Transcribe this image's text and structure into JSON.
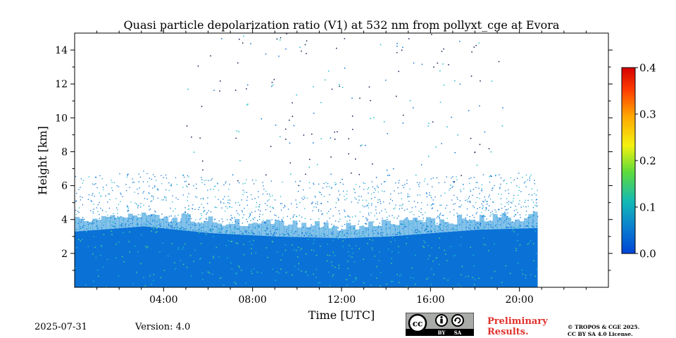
{
  "chart_data": {
    "type": "heatmap",
    "title": "Quasi particle depolarization ratio (V1) at 532 nm from pollyxt_cge at Evora",
    "xlabel": "Time [UTC]",
    "ylabel": "Height [km]",
    "x_unit": "hours UTC",
    "xlim": [
      0,
      24
    ],
    "ylim": [
      0,
      15
    ],
    "x_ticks": [
      4,
      8,
      12,
      16,
      20
    ],
    "x_tick_labels": [
      "04:00",
      "08:00",
      "12:00",
      "16:00",
      "20:00"
    ],
    "y_ticks": [
      2,
      4,
      6,
      8,
      10,
      12,
      14
    ],
    "y_tick_labels": [
      "2",
      "4",
      "6",
      "8",
      "10",
      "12",
      "14"
    ],
    "data_end_hour": 20.8,
    "dense_layer_top_km": [
      [
        0,
        3.3
      ],
      [
        3,
        3.6
      ],
      [
        6,
        3.2
      ],
      [
        9,
        3.0
      ],
      [
        12,
        2.9
      ],
      [
        14,
        3.0
      ],
      [
        16,
        3.2
      ],
      [
        18,
        3.4
      ],
      [
        20.8,
        3.5
      ]
    ],
    "typical_value": 0.07,
    "colorbar": {
      "range": [
        0.0,
        0.4
      ],
      "ticks": [
        0.0,
        0.1,
        0.2,
        0.3,
        0.4
      ],
      "tick_labels": [
        "0.0",
        "0.1",
        "0.2",
        "0.3",
        "0.4"
      ],
      "colormap": [
        "#0044d6",
        "#0a7fd0",
        "#13b9b5",
        "#5edc3a",
        "#f4f20f",
        "#ffa600",
        "#ff3d00",
        "#d40000"
      ]
    }
  },
  "footer": {
    "date": "2025-07-31",
    "version": "Version: 4.0",
    "preliminary_line1": "Preliminary",
    "preliminary_line2": "Results.",
    "copyright_line1": "© TROPOS & CGE 2025.",
    "copyright_line2": "CC BY SA 4.0 License.",
    "license_badge": {
      "cc": "cc",
      "by": "BY",
      "sa": "SA"
    }
  },
  "colors": {
    "fill_main": "#0a72d6",
    "fill_light": "#1d8fd8",
    "speck_green": "#4fd28a",
    "speck_cyan": "#19b9c7",
    "speck_dark": "#06184a",
    "accent_red": "#e0312c"
  }
}
